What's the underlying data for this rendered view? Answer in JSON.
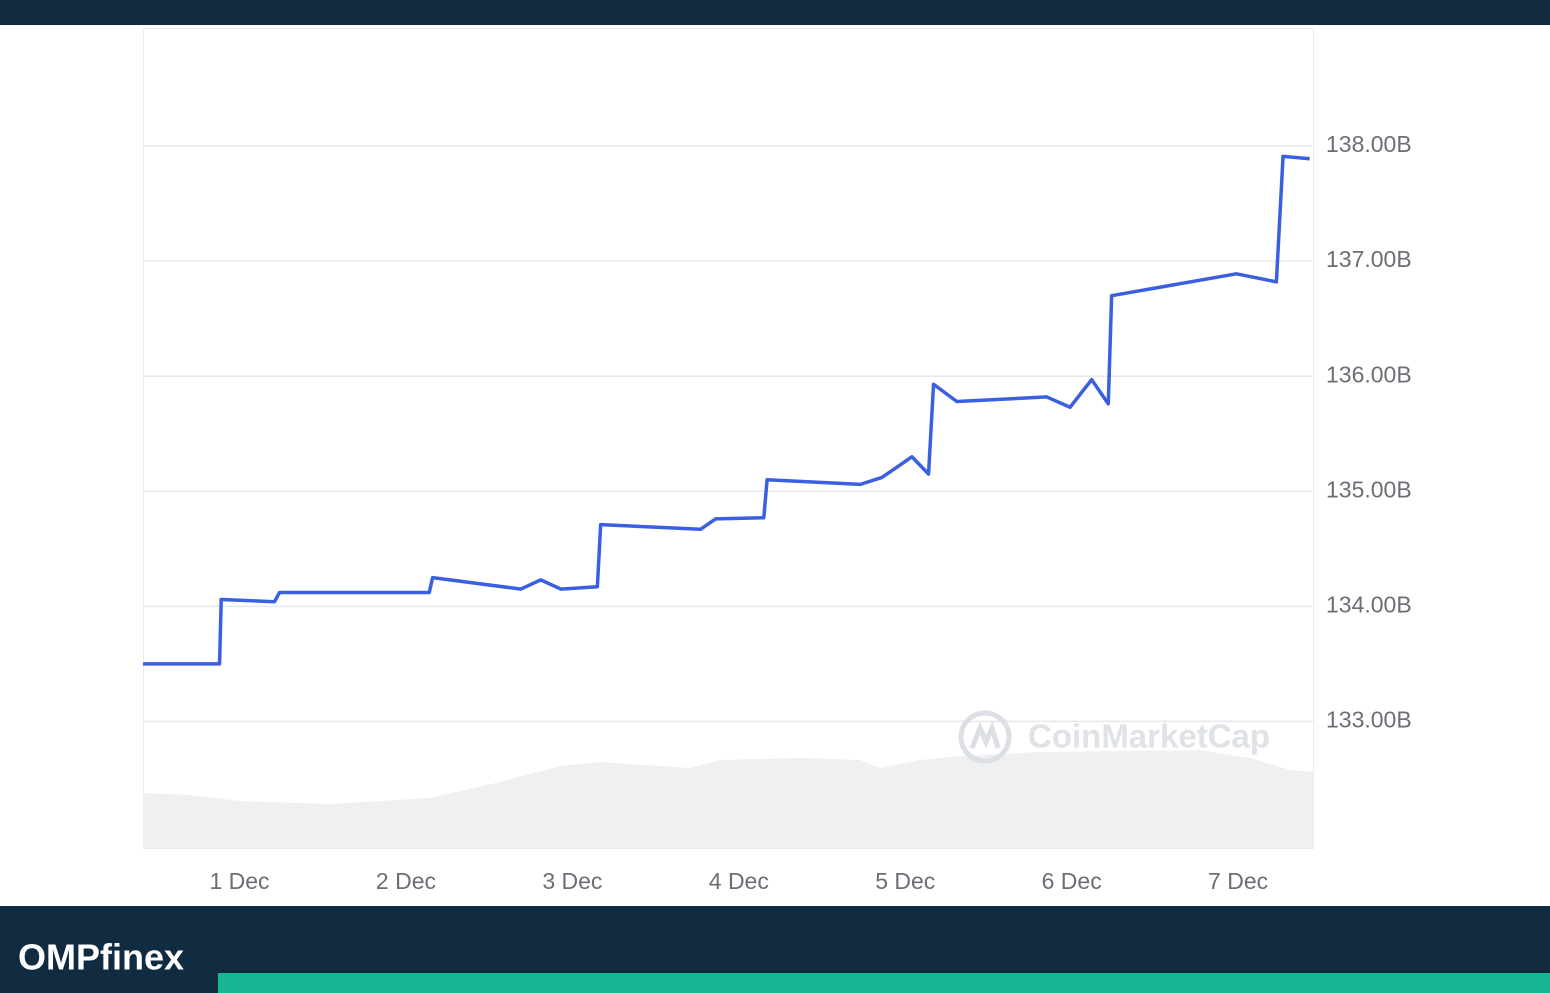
{
  "chart_data": {
    "type": "line",
    "x": [
      0.42,
      0.88,
      0.89,
      1.21,
      1.24,
      2.14,
      2.16,
      2.69,
      2.81,
      2.93,
      3.15,
      3.17,
      3.77,
      3.86,
      4.15,
      4.17,
      4.73,
      4.86,
      5.04,
      5.14,
      5.17,
      5.31,
      5.85,
      5.99,
      6.12,
      6.22,
      6.24,
      6.99,
      7.23,
      7.27,
      7.43
    ],
    "series": [
      {
        "color": "#3a5fe0",
        "values": [
          133.5,
          133.5,
          134.06,
          134.04,
          134.12,
          134.12,
          134.25,
          134.15,
          134.23,
          134.15,
          134.17,
          134.71,
          134.67,
          134.76,
          134.77,
          135.1,
          135.06,
          135.12,
          135.3,
          135.15,
          135.93,
          135.78,
          135.82,
          135.73,
          135.97,
          135.76,
          136.7,
          136.89,
          136.82,
          137.91,
          137.89
        ]
      }
    ],
    "xlim": [
      0.42,
      7.45
    ],
    "xticks": [
      {
        "value": 1,
        "label": "1 Dec"
      },
      {
        "value": 2,
        "label": "2 Dec"
      },
      {
        "value": 3,
        "label": "3 Dec"
      },
      {
        "value": 4,
        "label": "4 Dec"
      },
      {
        "value": 5,
        "label": "5 Dec"
      },
      {
        "value": 6,
        "label": "6 Dec"
      },
      {
        "value": 7,
        "label": "7 Dec"
      }
    ],
    "ylim": [
      131.9,
      139.0
    ],
    "yticks": [
      {
        "value": 133,
        "label": "133.00B"
      },
      {
        "value": 134,
        "label": "134.00B"
      },
      {
        "value": 135,
        "label": "135.00B"
      },
      {
        "value": 136,
        "label": "136.00B"
      },
      {
        "value": 137,
        "label": "137.00B"
      },
      {
        "value": 138,
        "label": "138.00B"
      }
    ],
    "grid": true,
    "watermark": "CoinMarketCap"
  },
  "footer": {
    "logo": "OMPfinex"
  }
}
